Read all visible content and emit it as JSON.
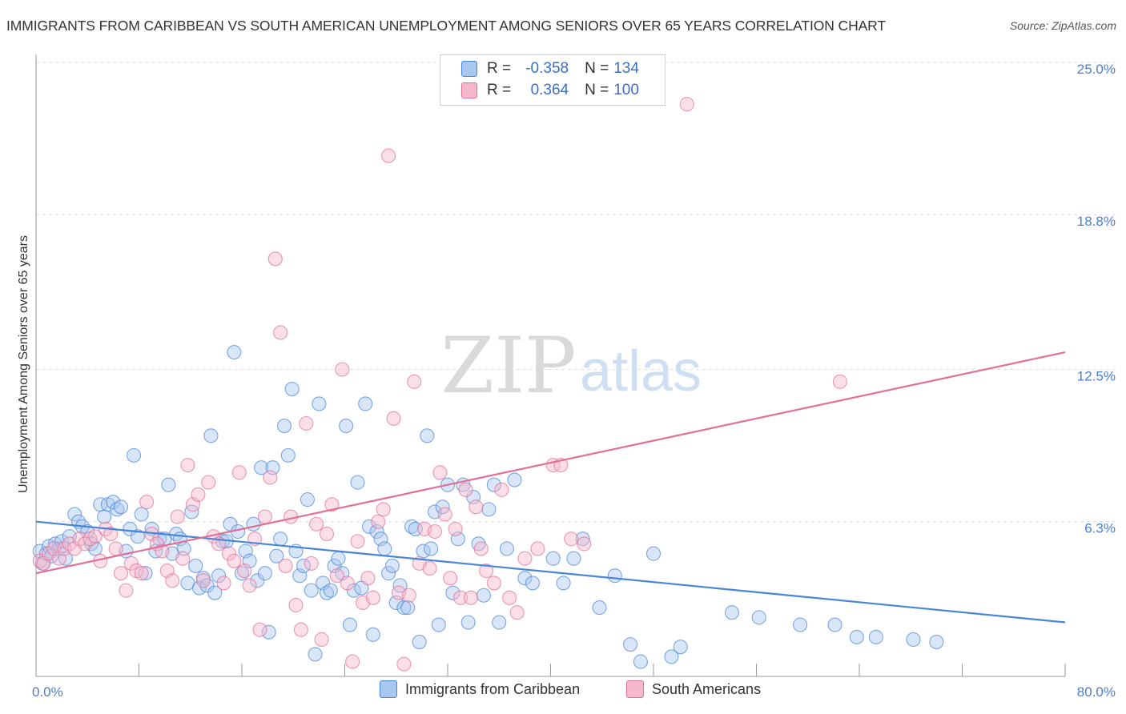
{
  "header": {
    "title": "IMMIGRANTS FROM CARIBBEAN VS SOUTH AMERICAN UNEMPLOYMENT AMONG SENIORS OVER 65 YEARS CORRELATION CHART",
    "source": "Source: ZipAtlas.com"
  },
  "watermark": {
    "zip": "ZIP",
    "atlas": "atlas"
  },
  "legend": {
    "r_label": "R =",
    "n_label": "N =",
    "series": [
      {
        "name": "Immigrants from Caribbean",
        "r": "-0.358",
        "n": "134",
        "color": "#4a86d8",
        "fill": "#a9c8f0"
      },
      {
        "name": "South Americans",
        "r": "0.364",
        "n": "100",
        "color": "#e26f97",
        "fill": "#f5b8cc"
      }
    ]
  },
  "chart_data": {
    "type": "scatter",
    "title": "IMMIGRANTS FROM CARIBBEAN VS SOUTH AMERICAN UNEMPLOYMENT AMONG SENIORS OVER 65 YEARS CORRELATION CHART",
    "xlabel": "",
    "ylabel": "Unemployment Among Seniors over 65 years",
    "xlim": [
      0,
      80
    ],
    "ylim": [
      0,
      25
    ],
    "y_ticks": [
      {
        "value": 6.3,
        "label": "6.3%"
      },
      {
        "value": 12.5,
        "label": "12.5%"
      },
      {
        "value": 18.8,
        "label": "18.8%"
      },
      {
        "value": 25.0,
        "label": "25.0%"
      }
    ],
    "x_ticks": [
      {
        "value": 0,
        "label": "0.0%"
      },
      {
        "value": 80,
        "label": "80.0%"
      }
    ],
    "series": [
      {
        "name": "Immigrants from Caribbean",
        "color": "#4a86d8",
        "trend": {
          "x": [
            0,
            80
          ],
          "y": [
            6.3,
            2.2
          ]
        },
        "points": [
          [
            0.3,
            5.1
          ],
          [
            0.5,
            4.6
          ],
          [
            0.8,
            5.0
          ],
          [
            1.0,
            5.3
          ],
          [
            1.2,
            4.9
          ],
          [
            1.5,
            5.4
          ],
          [
            1.8,
            5.2
          ],
          [
            2.0,
            5.5
          ],
          [
            2.3,
            4.8
          ],
          [
            2.6,
            5.7
          ],
          [
            3.0,
            6.6
          ],
          [
            3.3,
            6.3
          ],
          [
            3.6,
            6.1
          ],
          [
            4.0,
            5.9
          ],
          [
            4.3,
            5.4
          ],
          [
            4.6,
            5.2
          ],
          [
            5.0,
            7.0
          ],
          [
            5.3,
            6.5
          ],
          [
            5.6,
            7.0
          ],
          [
            6.0,
            7.1
          ],
          [
            6.3,
            6.8
          ],
          [
            6.6,
            6.9
          ],
          [
            7.0,
            5.1
          ],
          [
            7.3,
            6.0
          ],
          [
            7.6,
            9.0
          ],
          [
            7.9,
            5.7
          ],
          [
            8.2,
            6.6
          ],
          [
            8.5,
            4.2
          ],
          [
            9.0,
            6.0
          ],
          [
            9.3,
            5.1
          ],
          [
            9.6,
            5.6
          ],
          [
            10.0,
            5.6
          ],
          [
            10.3,
            7.8
          ],
          [
            10.6,
            5.0
          ],
          [
            10.9,
            5.8
          ],
          [
            11.2,
            5.6
          ],
          [
            11.5,
            5.2
          ],
          [
            11.8,
            3.8
          ],
          [
            12.1,
            6.7
          ],
          [
            12.4,
            4.5
          ],
          [
            12.7,
            3.6
          ],
          [
            13.0,
            4.0
          ],
          [
            13.3,
            3.7
          ],
          [
            13.6,
            9.8
          ],
          [
            13.9,
            3.4
          ],
          [
            14.2,
            4.1
          ],
          [
            14.5,
            5.5
          ],
          [
            14.8,
            5.5
          ],
          [
            15.1,
            6.2
          ],
          [
            15.4,
            13.2
          ],
          [
            15.7,
            5.9
          ],
          [
            16.0,
            4.2
          ],
          [
            16.3,
            5.1
          ],
          [
            16.6,
            4.7
          ],
          [
            16.9,
            6.2
          ],
          [
            17.2,
            3.9
          ],
          [
            17.5,
            8.5
          ],
          [
            17.8,
            4.2
          ],
          [
            18.1,
            1.8
          ],
          [
            18.4,
            8.5
          ],
          [
            18.7,
            4.9
          ],
          [
            19.0,
            5.6
          ],
          [
            19.3,
            10.2
          ],
          [
            19.6,
            9.0
          ],
          [
            19.9,
            11.7
          ],
          [
            20.2,
            5.1
          ],
          [
            20.5,
            4.1
          ],
          [
            20.8,
            4.5
          ],
          [
            21.1,
            7.2
          ],
          [
            21.4,
            3.5
          ],
          [
            21.7,
            0.9
          ],
          [
            22.0,
            11.1
          ],
          [
            22.3,
            3.8
          ],
          [
            22.6,
            3.4
          ],
          [
            22.9,
            3.5
          ],
          [
            23.2,
            4.5
          ],
          [
            23.5,
            4.8
          ],
          [
            23.8,
            4.2
          ],
          [
            24.1,
            10.2
          ],
          [
            24.4,
            2.1
          ],
          [
            24.7,
            3.5
          ],
          [
            25.0,
            7.9
          ],
          [
            25.3,
            3.6
          ],
          [
            25.6,
            11.1
          ],
          [
            25.9,
            6.1
          ],
          [
            26.2,
            1.7
          ],
          [
            26.5,
            5.9
          ],
          [
            26.8,
            5.6
          ],
          [
            27.1,
            5.2
          ],
          [
            27.4,
            4.2
          ],
          [
            27.7,
            4.5
          ],
          [
            28.0,
            3.0
          ],
          [
            28.3,
            3.7
          ],
          [
            28.6,
            2.8
          ],
          [
            28.9,
            2.8
          ],
          [
            29.2,
            6.1
          ],
          [
            29.5,
            6.0
          ],
          [
            29.8,
            1.4
          ],
          [
            30.1,
            5.1
          ],
          [
            30.4,
            9.8
          ],
          [
            30.7,
            5.2
          ],
          [
            31.0,
            6.7
          ],
          [
            31.3,
            2.1
          ],
          [
            31.6,
            6.9
          ],
          [
            32.0,
            7.8
          ],
          [
            32.4,
            3.4
          ],
          [
            32.8,
            5.6
          ],
          [
            33.2,
            7.8
          ],
          [
            33.6,
            2.2
          ],
          [
            34.0,
            7.3
          ],
          [
            34.4,
            5.4
          ],
          [
            34.8,
            3.3
          ],
          [
            35.2,
            6.8
          ],
          [
            35.6,
            7.8
          ],
          [
            36.0,
            2.2
          ],
          [
            36.6,
            5.2
          ],
          [
            37.2,
            8.0
          ],
          [
            38.0,
            4.0
          ],
          [
            38.6,
            3.8
          ],
          [
            40.2,
            4.8
          ],
          [
            41.0,
            3.8
          ],
          [
            41.8,
            4.8
          ],
          [
            42.5,
            5.6
          ],
          [
            43.8,
            2.8
          ],
          [
            45.0,
            4.1
          ],
          [
            46.2,
            1.3
          ],
          [
            47.0,
            0.6
          ],
          [
            48.0,
            5.0
          ],
          [
            49.4,
            0.8
          ],
          [
            50.1,
            1.2
          ],
          [
            54.1,
            2.6
          ],
          [
            56.2,
            2.4
          ],
          [
            59.4,
            2.1
          ],
          [
            62.1,
            2.1
          ],
          [
            63.8,
            1.6
          ],
          [
            65.3,
            1.6
          ],
          [
            68.2,
            1.5
          ],
          [
            70.0,
            1.4
          ]
        ]
      },
      {
        "name": "South Americans",
        "color": "#e26f97",
        "trend": {
          "x": [
            0,
            80
          ],
          "y": [
            4.2,
            13.2
          ]
        },
        "points": [
          [
            0.3,
            4.7
          ],
          [
            0.6,
            4.6
          ],
          [
            1.0,
            5.0
          ],
          [
            1.4,
            5.2
          ],
          [
            1.8,
            4.8
          ],
          [
            2.2,
            5.2
          ],
          [
            2.6,
            5.4
          ],
          [
            3.0,
            5.2
          ],
          [
            3.4,
            5.6
          ],
          [
            3.8,
            5.4
          ],
          [
            4.2,
            5.6
          ],
          [
            4.6,
            5.7
          ],
          [
            5.0,
            4.7
          ],
          [
            5.4,
            6.0
          ],
          [
            5.8,
            5.8
          ],
          [
            6.2,
            5.2
          ],
          [
            6.6,
            4.2
          ],
          [
            7.0,
            3.5
          ],
          [
            7.4,
            4.6
          ],
          [
            7.8,
            4.3
          ],
          [
            8.2,
            4.2
          ],
          [
            8.6,
            7.1
          ],
          [
            9.0,
            5.8
          ],
          [
            9.4,
            5.4
          ],
          [
            9.8,
            5.1
          ],
          [
            10.2,
            4.3
          ],
          [
            10.6,
            3.9
          ],
          [
            11.0,
            6.5
          ],
          [
            11.4,
            4.8
          ],
          [
            11.8,
            8.6
          ],
          [
            12.2,
            7.0
          ],
          [
            12.6,
            7.4
          ],
          [
            13.0,
            3.9
          ],
          [
            13.4,
            7.9
          ],
          [
            13.8,
            5.7
          ],
          [
            14.2,
            5.4
          ],
          [
            14.6,
            3.8
          ],
          [
            15.0,
            5.0
          ],
          [
            15.4,
            4.7
          ],
          [
            15.8,
            8.3
          ],
          [
            16.2,
            4.3
          ],
          [
            16.6,
            3.7
          ],
          [
            17.0,
            5.6
          ],
          [
            17.4,
            1.9
          ],
          [
            17.8,
            6.5
          ],
          [
            18.2,
            8.1
          ],
          [
            18.6,
            17.0
          ],
          [
            19.0,
            14.0
          ],
          [
            19.4,
            4.5
          ],
          [
            19.8,
            6.5
          ],
          [
            20.2,
            2.9
          ],
          [
            20.6,
            1.9
          ],
          [
            21.0,
            10.3
          ],
          [
            21.4,
            4.6
          ],
          [
            21.8,
            6.2
          ],
          [
            22.2,
            1.5
          ],
          [
            22.6,
            5.8
          ],
          [
            23.0,
            7.0
          ],
          [
            23.4,
            4.1
          ],
          [
            23.8,
            12.5
          ],
          [
            24.2,
            3.8
          ],
          [
            24.6,
            0.6
          ],
          [
            25.0,
            5.5
          ],
          [
            25.4,
            3.0
          ],
          [
            25.8,
            4.0
          ],
          [
            26.2,
            3.2
          ],
          [
            26.6,
            6.3
          ],
          [
            27.0,
            6.8
          ],
          [
            27.4,
            21.2
          ],
          [
            27.8,
            10.5
          ],
          [
            28.2,
            3.4
          ],
          [
            28.6,
            0.5
          ],
          [
            29.0,
            3.3
          ],
          [
            29.4,
            12.0
          ],
          [
            29.8,
            4.6
          ],
          [
            30.2,
            6.0
          ],
          [
            30.6,
            4.4
          ],
          [
            31.0,
            5.9
          ],
          [
            31.4,
            8.3
          ],
          [
            31.8,
            6.6
          ],
          [
            32.2,
            4.0
          ],
          [
            32.6,
            6.0
          ],
          [
            33.0,
            3.2
          ],
          [
            33.4,
            7.6
          ],
          [
            33.8,
            3.2
          ],
          [
            34.2,
            6.9
          ],
          [
            34.6,
            5.2
          ],
          [
            35.0,
            4.3
          ],
          [
            35.6,
            3.8
          ],
          [
            36.2,
            7.6
          ],
          [
            36.8,
            3.2
          ],
          [
            37.4,
            2.6
          ],
          [
            38.0,
            4.8
          ],
          [
            39.0,
            5.2
          ],
          [
            40.2,
            8.6
          ],
          [
            40.8,
            8.6
          ],
          [
            41.6,
            5.6
          ],
          [
            42.6,
            5.4
          ],
          [
            62.5,
            12.0
          ],
          [
            50.6,
            23.3
          ]
        ]
      }
    ]
  },
  "bottom_legend": [
    {
      "label": "Immigrants from Caribbean"
    },
    {
      "label": "South Americans"
    }
  ]
}
